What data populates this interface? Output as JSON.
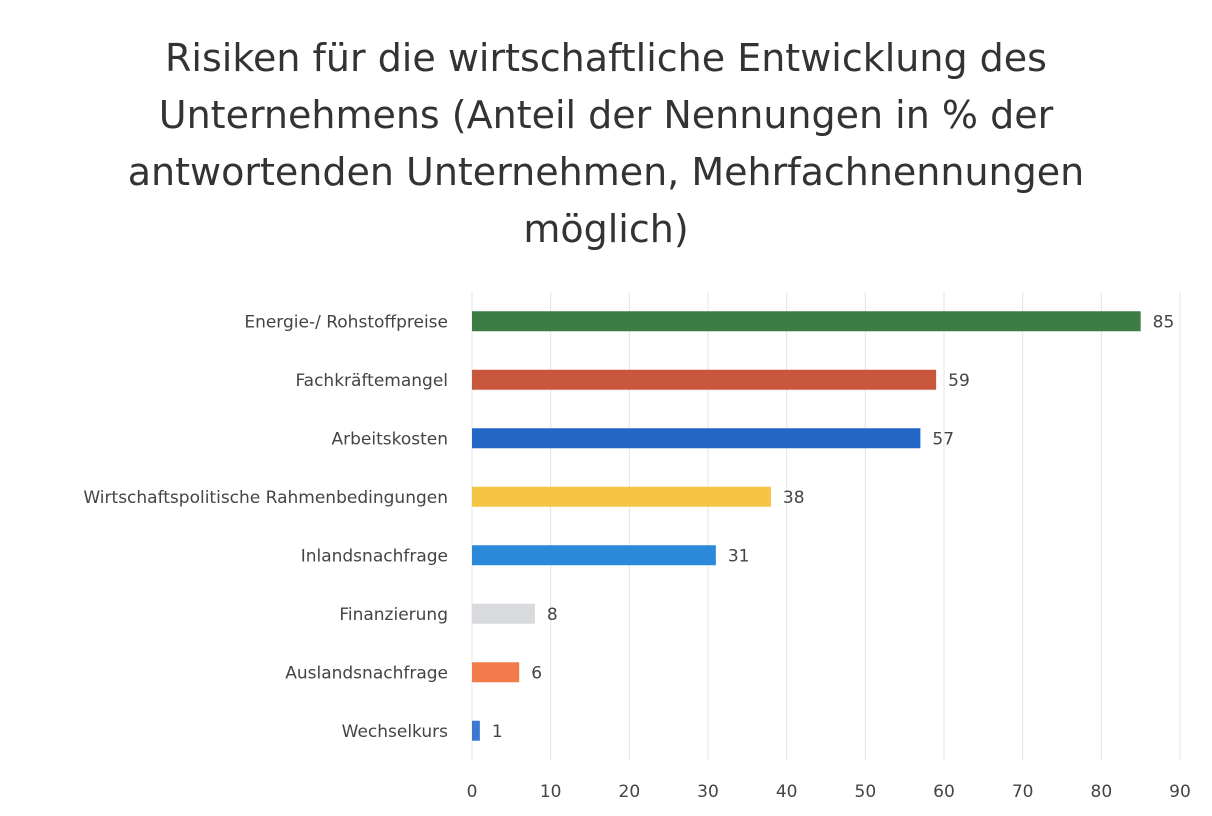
{
  "chart_data": {
    "type": "barh",
    "title": "Risiken für die wirtschaftliche Entwicklung des Unternehmens (Anteil der Nennungen in % der antwortenden Unternehmen, Mehrfachnennungen möglich)",
    "categories": [
      "Energie-/ Rohstoffpreise",
      "Fachkräftemangel",
      "Arbeitskosten",
      "Wirtschaftspolitische Rahmenbedingungen",
      "Inlandsnachfrage",
      "Finanzierung",
      "Auslandsnachfrage",
      "Wechselkurs"
    ],
    "values": [
      85,
      59,
      57,
      38,
      31,
      8,
      6,
      1
    ],
    "colors": [
      "#3b7d45",
      "#c9573d",
      "#2366c6",
      "#f7c544",
      "#2a8ad9",
      "#d8dade",
      "#f27a4b",
      "#3a78d2"
    ],
    "xlim": [
      0,
      90
    ],
    "xticks": [
      0,
      10,
      20,
      30,
      40,
      50,
      60,
      70,
      80,
      90
    ],
    "grid": true
  }
}
